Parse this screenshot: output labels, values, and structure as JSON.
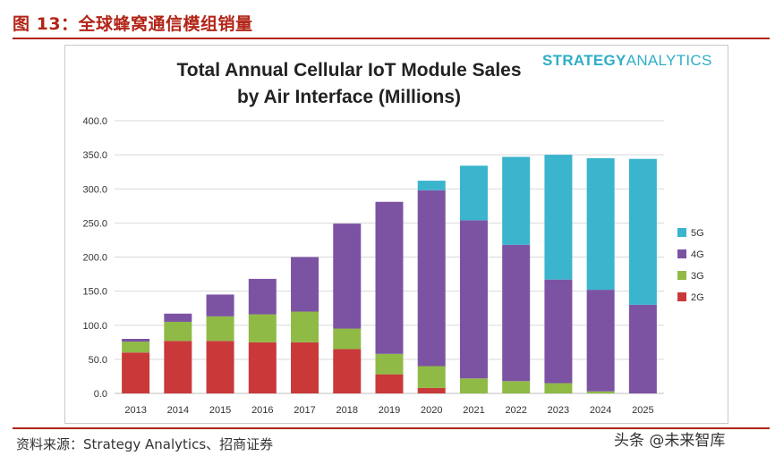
{
  "figure_title": "图 13：全球蜂窝通信模组销量",
  "brand": {
    "strong": "STRATEGY",
    "light": "ANALYTICS"
  },
  "source": "资料来源：Strategy Analytics、招商证券",
  "watermark": "头条 @未来智库",
  "colors": {
    "2G": "#c9393a",
    "3G": "#8fba45",
    "4G": "#7c53a3",
    "5G": "#3bb4cd",
    "accent": "#b22417"
  },
  "chart_data": {
    "type": "bar",
    "stacked": true,
    "title": "Total Annual Cellular IoT Module Sales by Air Interface (Millions)",
    "title_lines": [
      "Total Annual Cellular IoT Module Sales",
      "by Air Interface (Millions)"
    ],
    "categories": [
      "2013",
      "2014",
      "2015",
      "2016",
      "2017",
      "2018",
      "2019",
      "2020",
      "2021",
      "2022",
      "2023",
      "2024",
      "2025"
    ],
    "series": [
      {
        "name": "2G",
        "values": [
          60,
          77,
          77,
          75,
          75,
          65,
          28,
          8,
          0,
          0,
          0,
          0,
          0
        ]
      },
      {
        "name": "3G",
        "values": [
          16,
          28,
          36,
          41,
          45,
          30,
          30,
          32,
          22,
          18,
          15,
          3,
          0
        ]
      },
      {
        "name": "4G",
        "values": [
          4,
          12,
          32,
          52,
          80,
          154,
          223,
          258,
          232,
          200,
          152,
          149,
          130
        ]
      },
      {
        "name": "5G",
        "values": [
          0,
          0,
          0,
          0,
          0,
          0,
          0,
          14,
          80,
          129,
          183,
          193,
          214
        ]
      }
    ],
    "legend_order": [
      "5G",
      "4G",
      "3G",
      "2G"
    ],
    "legend_position": "right",
    "ylim": [
      0,
      400
    ],
    "yticks": [
      "0.0",
      "50.0",
      "100.0",
      "150.0",
      "200.0",
      "250.0",
      "300.0",
      "350.0",
      "400.0"
    ],
    "grid": true
  }
}
